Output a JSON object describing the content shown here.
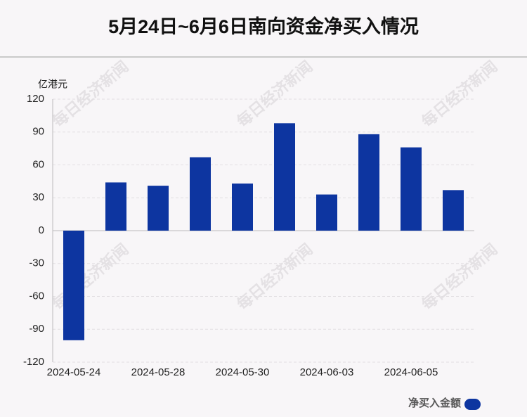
{
  "chart_data": {
    "type": "bar",
    "title": "5月24日~6月6日南向资金净买入情况",
    "y_label": "亿港元",
    "watermark": "每日经济新闻",
    "categories": [
      "2024-05-24",
      null,
      "2024-05-28",
      null,
      "2024-05-30",
      null,
      "2024-06-03",
      null,
      "2024-06-05",
      null
    ],
    "series": [
      {
        "name": "净买入金额",
        "color": "#0d35a0",
        "values": [
          -100,
          44,
          41,
          67,
          43,
          98,
          33,
          88,
          76,
          37
        ]
      }
    ],
    "ylim": [
      -120,
      120
    ],
    "yticks": [
      -120,
      -90,
      -60,
      -30,
      0,
      30,
      60,
      90,
      120
    ],
    "grid": true
  }
}
